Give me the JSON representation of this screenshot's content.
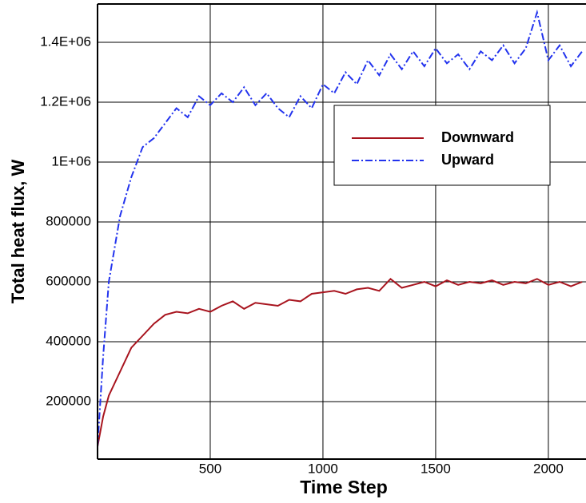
{
  "chart_data": {
    "type": "line",
    "x_label": "Time Step",
    "y_label": "Total heat flux, W",
    "x": [
      0,
      25,
      50,
      100,
      150,
      200,
      250,
      300,
      350,
      400,
      450,
      500,
      550,
      600,
      650,
      700,
      750,
      800,
      850,
      900,
      950,
      1000,
      1050,
      1100,
      1150,
      1200,
      1250,
      1300,
      1350,
      1400,
      1450,
      1500,
      1550,
      1600,
      1650,
      1700,
      1750,
      1800,
      1850,
      1900,
      1950,
      2000,
      2050,
      2100,
      2150
    ],
    "series": [
      {
        "name": "Downward",
        "color": "#a8141e",
        "dash": "solid",
        "values": [
          50000,
          150000,
          220000,
          300000,
          380000,
          420000,
          460000,
          490000,
          500000,
          495000,
          510000,
          500000,
          520000,
          535000,
          510000,
          530000,
          525000,
          520000,
          540000,
          535000,
          560000,
          565000,
          570000,
          560000,
          575000,
          580000,
          570000,
          610000,
          580000,
          590000,
          600000,
          585000,
          605000,
          590000,
          600000,
          595000,
          605000,
          590000,
          600000,
          595000,
          610000,
          590000,
          600000,
          585000,
          600000
        ]
      },
      {
        "name": "Upward",
        "color": "#2233ee",
        "dash": "dashdot",
        "values": [
          50000,
          350000,
          600000,
          820000,
          950000,
          1050000,
          1080000,
          1130000,
          1180000,
          1150000,
          1220000,
          1190000,
          1230000,
          1200000,
          1250000,
          1190000,
          1230000,
          1180000,
          1150000,
          1220000,
          1180000,
          1260000,
          1230000,
          1300000,
          1260000,
          1340000,
          1290000,
          1360000,
          1310000,
          1370000,
          1320000,
          1380000,
          1330000,
          1360000,
          1310000,
          1370000,
          1340000,
          1390000,
          1330000,
          1380000,
          1500000,
          1340000,
          1390000,
          1320000,
          1370000
        ]
      }
    ],
    "xlim": [
      0,
      2167
    ],
    "ylim": [
      8000,
      1528000
    ],
    "xticks": [
      500,
      1000,
      1500,
      2000
    ],
    "yticks": [
      200000,
      400000,
      600000,
      800000,
      {
        "value": 1000000,
        "label": "1E+06"
      },
      {
        "value": 1200000,
        "label": "1.2E+06"
      },
      {
        "value": 1400000,
        "label": "1.4E+06"
      }
    ],
    "grid": true
  }
}
